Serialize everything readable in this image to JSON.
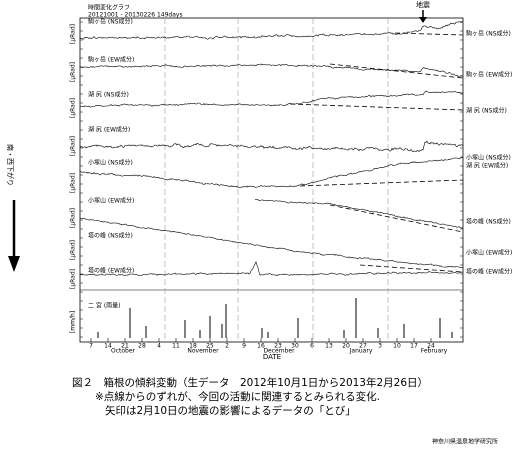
{
  "header": {
    "title": "時間変化グラフ",
    "period": "20121001 - 20130226 149days"
  },
  "event_label": "地震",
  "direction_label": "南・西下がり",
  "panels": [
    {
      "label": "駒ヶ岳 (NS成分)",
      "unit": "[μRad]"
    },
    {
      "label": "駒ヶ岳 (EW成分)",
      "unit": "[μRad]"
    },
    {
      "label": "湖 尻 (NS成分)",
      "unit": "[μRad]"
    },
    {
      "label": "湖 尻 (EW成分)",
      "unit": "[μRad]"
    },
    {
      "label": "小塚山 (NS成分)",
      "unit": "[μRad]"
    },
    {
      "label": "小塚山 (EW成分)",
      "unit": "[μRad]"
    },
    {
      "label": "塔の峰 (NS成分)",
      "unit": "[μRad]"
    },
    {
      "label": "塔の峰 (EW成分)",
      "unit": "[μRad]"
    },
    {
      "label": "二 宮 (雨量)",
      "unit": "[mm/h]"
    }
  ],
  "right_labels": [
    "駒ヶ岳 (NS成分)",
    "駒ヶ岳 (EW成分)",
    "湖 尻 (NS成分)",
    "小塚山 (NS成分)",
    "湖 尻 (EW成分)",
    "塔の峰 (NS成分)",
    "小塚山 (EW成分)",
    "塔の峰 (EW成分)"
  ],
  "x_axis": {
    "days": [
      7,
      14,
      21,
      28,
      4,
      11,
      18,
      25,
      2,
      9,
      16,
      23,
      30,
      6,
      13,
      20,
      27,
      3,
      10,
      17,
      24
    ],
    "months": [
      "October",
      "November",
      "December",
      "January",
      "February"
    ],
    "label": "DATE"
  },
  "caption": {
    "lines": [
      "図２　箱根の傾斜変動（生データ　2012年10月1日から2013年2月26日）",
      "※点線からのずれが、今回の活動に関連するとみられる変化.",
      "矢印は2月10日の地震の影響によるデータの「とび」"
    ]
  },
  "credit": "神奈川県温泉地学研究所"
}
